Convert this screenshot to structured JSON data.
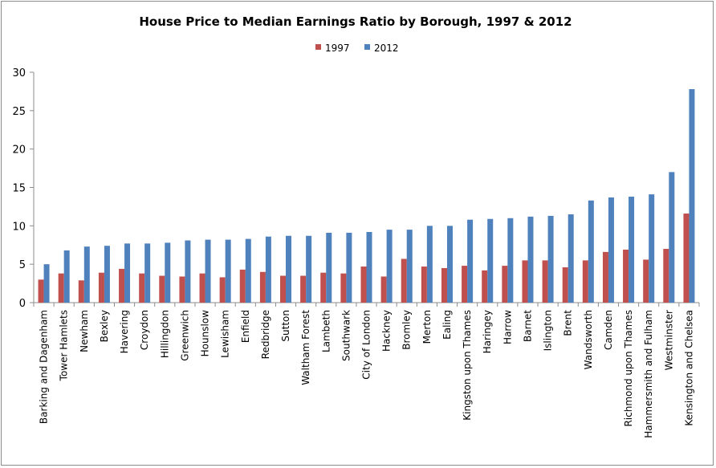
{
  "chart_data": {
    "type": "bar",
    "title": "House Price to Median Earnings Ratio by Borough, 1997 & 2012",
    "xlabel": "",
    "ylabel": "",
    "ylim": [
      0,
      30
    ],
    "yticks": [
      0,
      5,
      10,
      15,
      20,
      25,
      30
    ],
    "legend_position": "top-center",
    "grid": false,
    "categories": [
      "Barking and Dagenham",
      "Tower Hamlets",
      "Newham",
      "Bexley",
      "Havering",
      "Croydon",
      "Hillingdon",
      "Greenwich",
      "Hounslow",
      "Lewisham",
      "Enfield",
      "Redbridge",
      "Sutton",
      "Waltham Forest",
      "Lambeth",
      "Southwark",
      "City of London",
      "Hackney",
      "Bromley",
      "Merton",
      "Ealing",
      "Kingston upon Thames",
      "Haringey",
      "Harrow",
      "Barnet",
      "Islington",
      "Brent",
      "Wandsworth",
      "Camden",
      "Richmond upon Thames",
      "Hammersmith and Fulham",
      "Westminster",
      "Kensington and Chelsea"
    ],
    "series": [
      {
        "name": "1997",
        "color": "#c0504d",
        "values": [
          3.0,
          3.8,
          2.9,
          3.9,
          4.4,
          3.8,
          3.5,
          3.4,
          3.8,
          3.3,
          4.3,
          4.0,
          3.5,
          3.5,
          3.9,
          3.8,
          4.7,
          3.4,
          5.7,
          4.7,
          4.5,
          4.8,
          4.2,
          4.8,
          5.5,
          5.5,
          4.6,
          5.5,
          6.6,
          6.9,
          5.6,
          7.0,
          11.6
        ]
      },
      {
        "name": "2012",
        "color": "#4f81bd",
        "values": [
          5.0,
          6.8,
          7.3,
          7.4,
          7.7,
          7.7,
          7.8,
          8.1,
          8.2,
          8.2,
          8.3,
          8.6,
          8.7,
          8.7,
          9.1,
          9.1,
          9.2,
          9.5,
          9.5,
          10.0,
          10.0,
          10.8,
          10.9,
          11.0,
          11.2,
          11.3,
          11.5,
          13.3,
          13.7,
          13.8,
          14.1,
          17.0,
          27.8
        ]
      }
    ]
  }
}
